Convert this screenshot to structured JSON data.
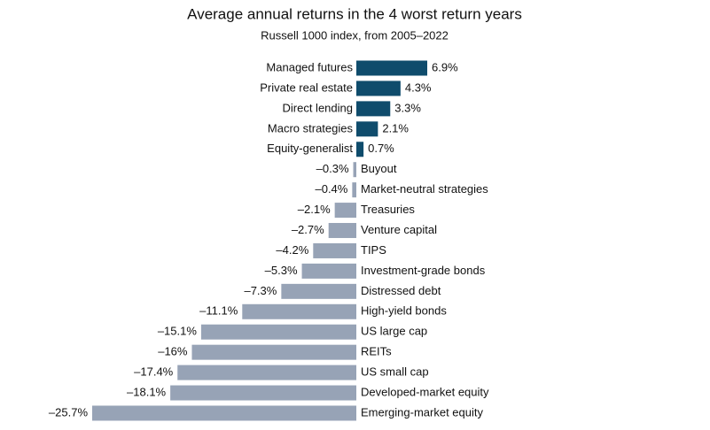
{
  "chart_data": {
    "type": "bar",
    "orientation": "horizontal",
    "title": "Average annual returns in the 4 worst return years",
    "subtitle": "Russell 1000 index, from 2005–2022",
    "categories": [
      "Managed futures",
      "Private real estate",
      "Direct lending",
      "Macro strategies",
      "Equity-generalist",
      "Buyout",
      "Market-neutral strategies",
      "Treasuries",
      "Venture capital",
      "TIPS",
      "Investment-grade bonds",
      "Distressed debt",
      "High-yield bonds",
      "US large cap",
      "REITs",
      "US small cap",
      "Developed-market equity",
      "Emerging-market equity"
    ],
    "values": [
      6.9,
      4.3,
      3.3,
      2.1,
      0.7,
      -0.3,
      -0.4,
      -2.1,
      -2.7,
      -4.2,
      -5.3,
      -7.3,
      -11.1,
      -15.1,
      -16,
      -17.4,
      -18.1,
      -25.7
    ],
    "value_labels": [
      "6.9%",
      "4.3%",
      "3.3%",
      "2.1%",
      "0.7%",
      "–0.3%",
      "–0.4%",
      "–2.1%",
      "–2.7%",
      "–4.2%",
      "–5.3%",
      "–7.3%",
      "–11.1%",
      "–15.1%",
      "–16%",
      "–17.4%",
      "–18.1%",
      "–25.7%"
    ],
    "positive_color": "#0f4c6c",
    "negative_color": "#97a3b6"
  }
}
